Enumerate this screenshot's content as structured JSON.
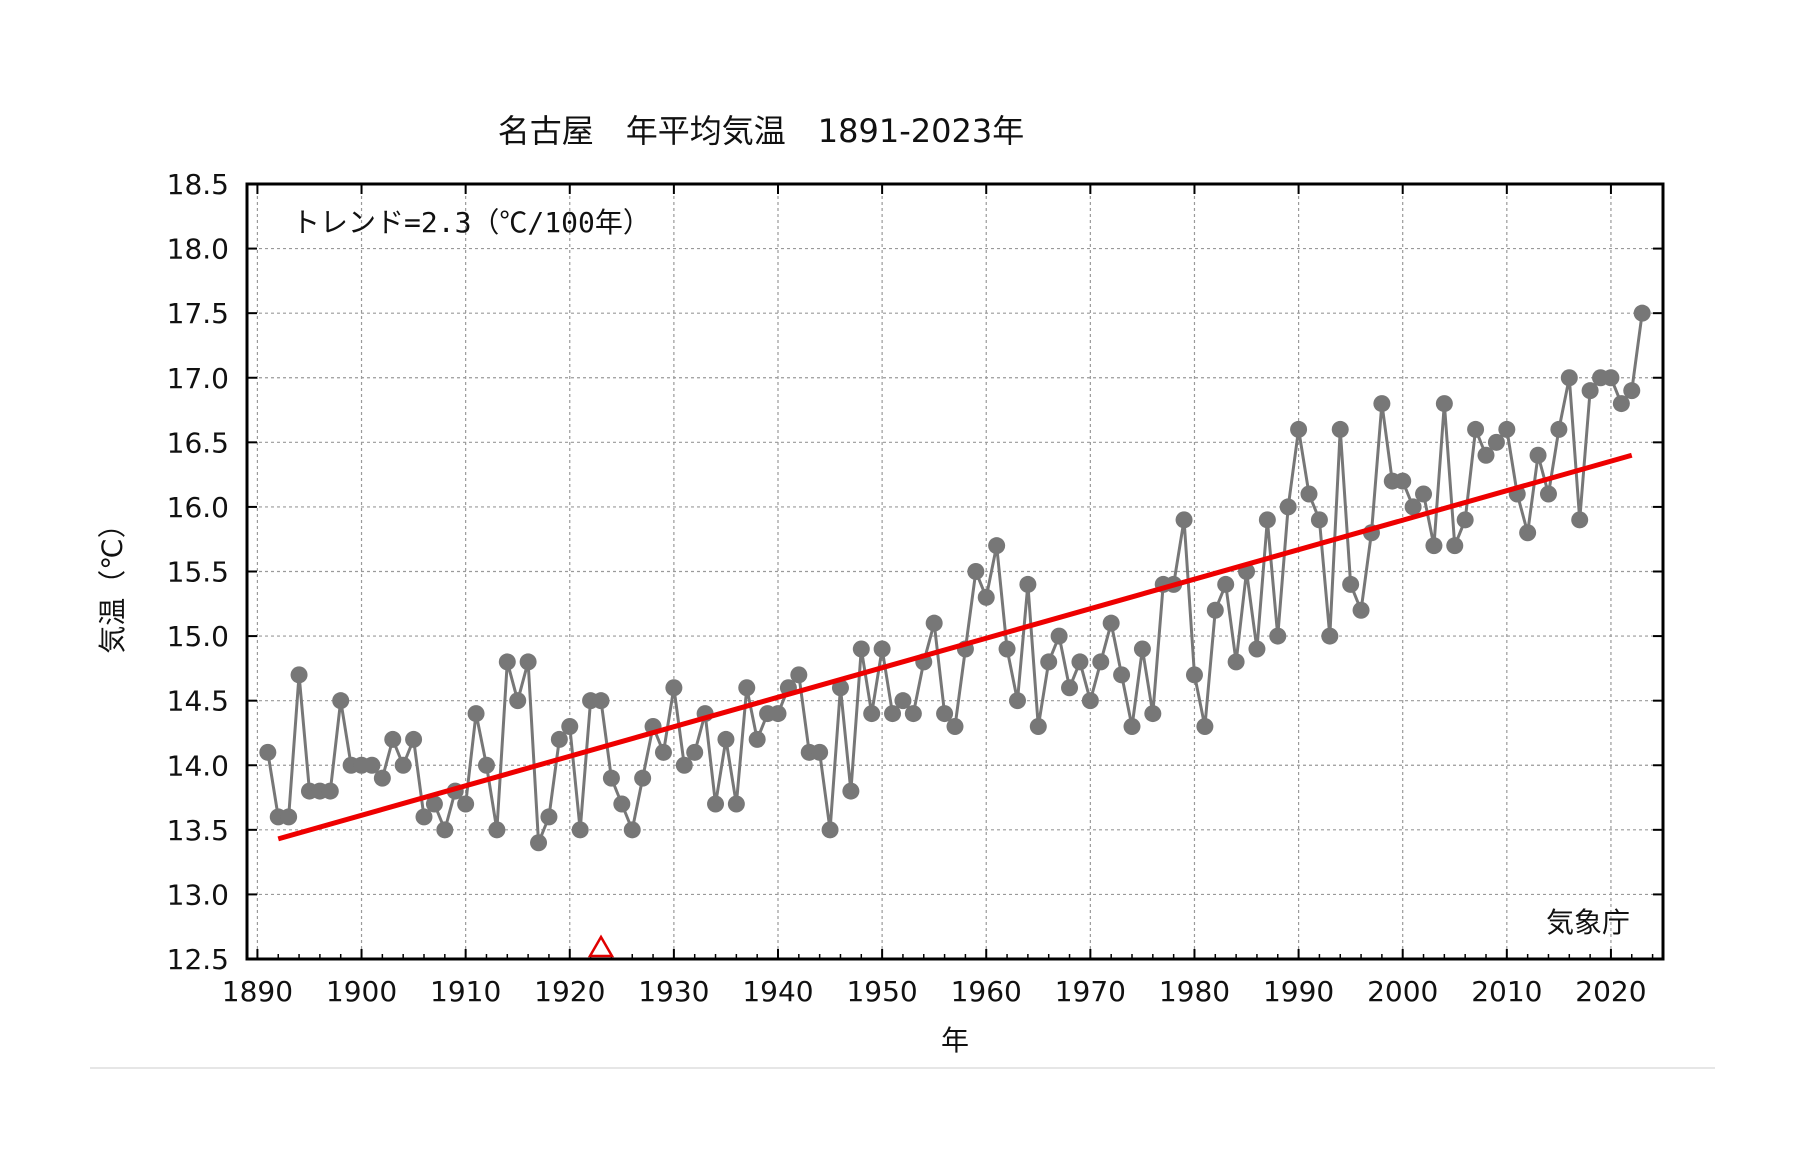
{
  "chart_data": {
    "type": "line",
    "title": "名古屋　年平均気温　1891-2023年",
    "xlabel": "年",
    "ylabel": "気温（℃）",
    "trend_label": "トレンド=2.3（℃/100年）",
    "source_label": "気象庁",
    "xlim": [
      1889,
      2025
    ],
    "ylim": [
      12.5,
      18.5
    ],
    "x_ticks": [
      1890,
      1900,
      1910,
      1920,
      1930,
      1940,
      1950,
      1960,
      1970,
      1980,
      1990,
      2000,
      2010,
      2020
    ],
    "y_ticks": [
      "12.5",
      "13.0",
      "13.5",
      "14.0",
      "14.5",
      "15.0",
      "15.5",
      "16.0",
      "16.5",
      "17.0",
      "17.5",
      "18.0",
      "18.5"
    ],
    "grid": true,
    "series": [
      {
        "color": "#777777",
        "x": [
          1891,
          1892,
          1893,
          1894,
          1895,
          1896,
          1897,
          1898,
          1899,
          1900,
          1901,
          1902,
          1903,
          1904,
          1905,
          1906,
          1907,
          1908,
          1909,
          1910,
          1911,
          1912,
          1913,
          1914,
          1915,
          1916,
          1917,
          1918,
          1919,
          1920,
          1921,
          1922,
          1923,
          1924,
          1925,
          1926,
          1927,
          1928,
          1929,
          1930,
          1931,
          1932,
          1933,
          1934,
          1935,
          1936,
          1937,
          1938,
          1939,
          1940,
          1941,
          1942,
          1943,
          1944,
          1945,
          1946,
          1947,
          1948,
          1949,
          1950,
          1951,
          1952,
          1953,
          1954,
          1955,
          1956,
          1957,
          1958,
          1959,
          1960,
          1961,
          1962,
          1963,
          1964,
          1965,
          1966,
          1967,
          1968,
          1969,
          1970,
          1971,
          1972,
          1973,
          1974,
          1975,
          1976,
          1977,
          1978,
          1979,
          1980,
          1981,
          1982,
          1983,
          1984,
          1985,
          1986,
          1987,
          1988,
          1989,
          1990,
          1991,
          1992,
          1993,
          1994,
          1995,
          1996,
          1997,
          1998,
          1999,
          2000,
          2001,
          2002,
          2003,
          2004,
          2005,
          2006,
          2007,
          2008,
          2009,
          2010,
          2011,
          2012,
          2013,
          2014,
          2015,
          2016,
          2017,
          2018,
          2019,
          2020,
          2021,
          2022,
          2023
        ],
        "y": [
          14.1,
          13.6,
          13.6,
          14.7,
          13.8,
          13.8,
          13.8,
          14.5,
          14.0,
          14.0,
          14.0,
          13.9,
          14.2,
          14.0,
          14.2,
          13.6,
          13.7,
          13.5,
          13.8,
          13.7,
          14.4,
          14.0,
          13.5,
          14.8,
          14.5,
          14.8,
          13.4,
          13.6,
          14.2,
          14.3,
          13.5,
          14.5,
          14.5,
          13.9,
          13.7,
          13.5,
          13.9,
          14.3,
          14.1,
          14.6,
          14.0,
          14.1,
          14.4,
          13.7,
          14.2,
          13.7,
          14.6,
          14.2,
          14.4,
          14.4,
          14.6,
          14.7,
          14.1,
          14.1,
          13.5,
          14.6,
          13.8,
          14.9,
          14.4,
          14.9,
          14.4,
          14.5,
          14.4,
          14.8,
          15.1,
          14.4,
          14.3,
          14.9,
          15.5,
          15.3,
          15.7,
          14.9,
          14.5,
          15.4,
          14.3,
          14.8,
          15.0,
          14.6,
          14.8,
          14.5,
          14.8,
          15.1,
          14.7,
          14.3,
          14.9,
          14.4,
          15.4,
          15.4,
          15.9,
          14.7,
          14.3,
          15.2,
          15.4,
          14.8,
          15.5,
          14.9,
          15.9,
          15.0,
          16.0,
          16.6,
          16.1,
          15.9,
          15.0,
          16.6,
          15.4,
          15.2,
          15.8,
          16.8,
          16.2,
          16.2,
          16.0,
          16.1,
          15.7,
          16.8,
          15.7,
          15.9,
          16.6,
          16.4,
          16.5,
          16.6,
          16.1,
          15.8,
          16.4,
          16.1,
          16.6,
          17.0,
          15.9,
          16.9,
          17.0,
          17.0,
          16.8,
          16.9,
          17.5
        ]
      },
      {
        "color": "#ee0000",
        "x": [
          1892,
          2022
        ],
        "y": [
          13.43,
          16.4
        ]
      }
    ],
    "markers": [
      {
        "shape": "triangle",
        "x": 1923,
        "y": 12.5,
        "color": "#e00000"
      }
    ]
  }
}
